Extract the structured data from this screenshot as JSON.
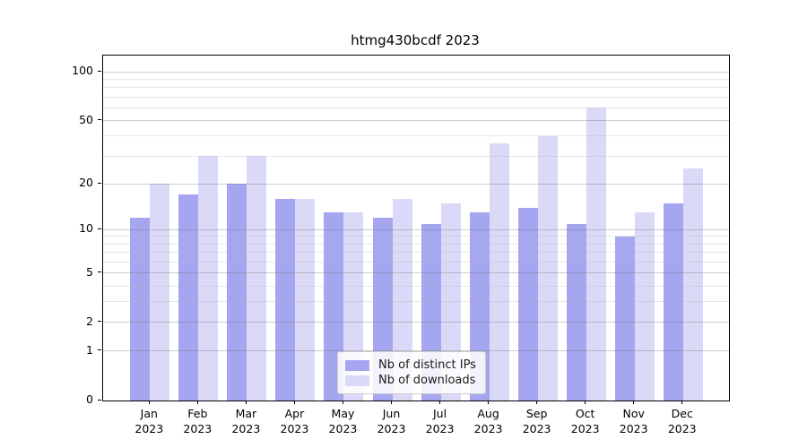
{
  "chart_data": {
    "type": "bar",
    "title": "htmg430bcdf 2023",
    "categories": [
      "Jan 2023",
      "Feb 2023",
      "Mar 2023",
      "Apr 2023",
      "May 2023",
      "Jun 2023",
      "Jul 2023",
      "Aug 2023",
      "Sep 2023",
      "Oct 2023",
      "Nov 2023",
      "Dec 2023"
    ],
    "series": [
      {
        "name": "Nb of distinct IPs",
        "color": "#a6a6f0",
        "values": [
          12,
          17,
          20,
          16,
          13,
          12,
          11,
          13,
          14,
          11,
          9,
          15
        ]
      },
      {
        "name": "Nb of downloads",
        "color": "#dadaf8",
        "values": [
          20,
          30,
          30,
          16,
          13,
          16,
          15,
          36,
          40,
          60,
          13,
          25
        ]
      }
    ],
    "xlabel": "",
    "ylabel": "",
    "yscale": "log1p",
    "ylim": [
      0,
      126
    ],
    "yticks_major": [
      100,
      50,
      20,
      10,
      5,
      2,
      1,
      0
    ],
    "yticks_minor": [
      3,
      4,
      6,
      7,
      8,
      9,
      30,
      40,
      60,
      70,
      80,
      90
    ],
    "grid": true,
    "legend_position": "lower center"
  },
  "colors": {
    "axis": "#000000",
    "grid_major": "#d4d4d4",
    "grid_minor": "#ececec",
    "legend_border": "#cccccc",
    "background": "#ffffff"
  }
}
